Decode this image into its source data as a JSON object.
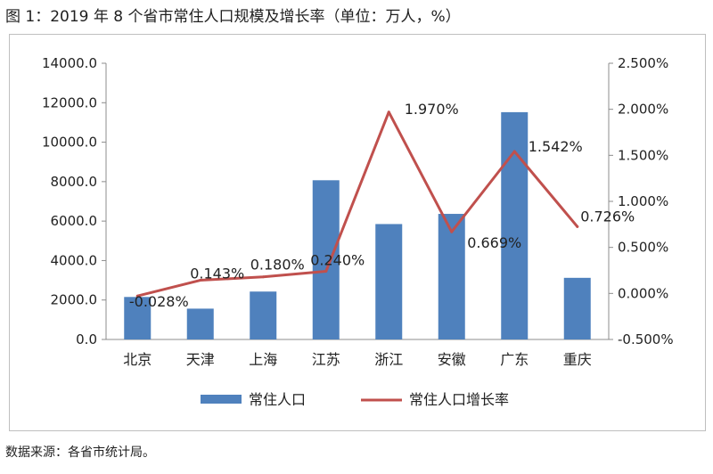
{
  "figure": {
    "title": "图 1：2019 年 8 个省市常住人口规模及增长率（单位：万人，%）",
    "source": "数据来源：各省市统计局。"
  },
  "colors": {
    "bar": "#4f81bd",
    "line": "#c0504d",
    "axis": "#8c8c8c"
  },
  "chart_data": {
    "type": "bar",
    "title": "图 1：2019 年 8 个省市常住人口规模及增长率（单位：万人，%）",
    "categories": [
      "北京",
      "天津",
      "上海",
      "江苏",
      "浙江",
      "安徽",
      "广东",
      "重庆"
    ],
    "y_left": {
      "range": [
        0,
        14000
      ],
      "step": 2000,
      "tick_labels": [
        "0.0",
        "2000.0",
        "4000.0",
        "6000.0",
        "8000.0",
        "10000.0",
        "12000.0",
        "14000.0"
      ]
    },
    "y_right": {
      "range": [
        -0.5,
        2.5
      ],
      "step": 0.5,
      "tick_labels": [
        "-0.500%",
        "0.000%",
        "0.500%",
        "1.000%",
        "1.500%",
        "2.000%",
        "2.500%"
      ]
    },
    "legend_position": "bottom",
    "grid": false,
    "series": [
      {
        "name": "常住人口",
        "type": "bar",
        "axis": "left",
        "values": [
          2154,
          1562,
          2428,
          8070,
          5850,
          6366,
          11521,
          3124
        ]
      },
      {
        "name": "常住人口增长率",
        "type": "line",
        "axis": "right",
        "values": [
          -0.028,
          0.143,
          0.18,
          0.24,
          1.97,
          0.669,
          1.542,
          0.726
        ],
        "data_labels": [
          "-0.028%",
          "0.143%",
          "0.180%",
          "0.240%",
          "1.970%",
          "0.669%",
          "1.542%",
          "0.726%"
        ]
      }
    ]
  }
}
